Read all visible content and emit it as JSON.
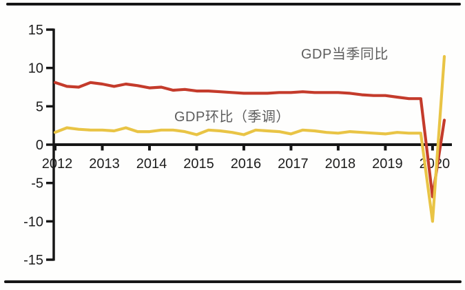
{
  "chart_data": {
    "type": "line",
    "title": "",
    "xlabel": "",
    "ylabel": "",
    "ylim": [
      -15,
      15
    ],
    "yticks": [
      15,
      10,
      5,
      0,
      -5,
      -10,
      -15
    ],
    "x_years": [
      "2012",
      "2013",
      "2014",
      "2015",
      "2016",
      "2017",
      "2018",
      "2019",
      "2020"
    ],
    "x_quarters": [
      "2012Q1",
      "2012Q2",
      "2012Q3",
      "2012Q4",
      "2013Q1",
      "2013Q2",
      "2013Q3",
      "2013Q4",
      "2014Q1",
      "2014Q2",
      "2014Q3",
      "2014Q4",
      "2015Q1",
      "2015Q2",
      "2015Q3",
      "2015Q4",
      "2016Q1",
      "2016Q2",
      "2016Q3",
      "2016Q4",
      "2017Q1",
      "2017Q2",
      "2017Q3",
      "2017Q4",
      "2018Q1",
      "2018Q2",
      "2018Q3",
      "2018Q4",
      "2019Q1",
      "2019Q2",
      "2019Q3",
      "2019Q4",
      "2020Q1",
      "2020Q2"
    ],
    "series": [
      {
        "name": "GDP当季同比",
        "color": "#c43b2b",
        "values": [
          8.1,
          7.6,
          7.5,
          8.1,
          7.9,
          7.6,
          7.9,
          7.7,
          7.4,
          7.5,
          7.1,
          7.2,
          7.0,
          7.0,
          6.9,
          6.8,
          6.7,
          6.7,
          6.7,
          6.8,
          6.8,
          6.9,
          6.8,
          6.8,
          6.8,
          6.7,
          6.5,
          6.4,
          6.4,
          6.2,
          6.0,
          6.0,
          -6.8,
          3.2
        ]
      },
      {
        "name": "GDP环比（季调）",
        "color": "#e9c445",
        "values": [
          1.6,
          2.2,
          2.0,
          1.9,
          1.9,
          1.8,
          2.2,
          1.7,
          1.7,
          1.9,
          1.9,
          1.7,
          1.3,
          1.9,
          1.8,
          1.6,
          1.3,
          1.9,
          1.8,
          1.7,
          1.4,
          1.9,
          1.8,
          1.6,
          1.5,
          1.7,
          1.6,
          1.5,
          1.4,
          1.6,
          1.5,
          1.5,
          -10.0,
          11.5
        ]
      }
    ],
    "annotations": [
      {
        "text": "GDP当季同比"
      },
      {
        "text": "GDP环比（季调）"
      }
    ],
    "legend_position": "inline-annotations",
    "grid": false,
    "axis_color": "#161616"
  }
}
